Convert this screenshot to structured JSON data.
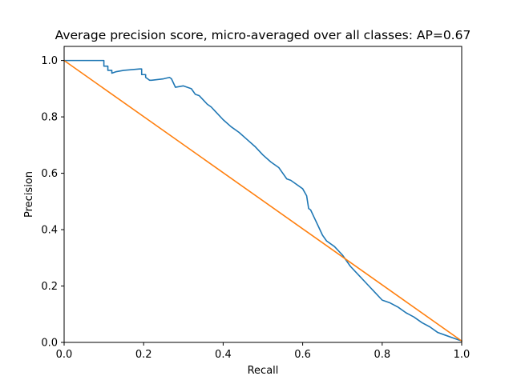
{
  "chart_data": {
    "type": "line",
    "title": "Average precision score, micro-averaged over all classes: AP=0.67",
    "xlabel": "Recall",
    "ylabel": "Precision",
    "xlim": [
      0.0,
      1.0
    ],
    "ylim": [
      0.0,
      1.05
    ],
    "xticks": [
      "0.0",
      "0.2",
      "0.4",
      "0.6",
      "0.8",
      "1.0"
    ],
    "yticks": [
      "0.0",
      "0.2",
      "0.4",
      "0.6",
      "0.8",
      "1.0"
    ],
    "grid": false,
    "colors": {
      "series0": "#1f77b4",
      "series1": "#ff7f0e"
    },
    "series": [
      {
        "x": [
          0.0,
          0.1,
          0.1,
          0.11,
          0.11,
          0.12,
          0.12,
          0.13,
          0.15,
          0.19,
          0.195,
          0.195,
          0.205,
          0.205,
          0.21,
          0.215,
          0.22,
          0.25,
          0.265,
          0.27,
          0.28,
          0.3,
          0.31,
          0.32,
          0.33,
          0.34,
          0.35,
          0.36,
          0.37,
          0.38,
          0.4,
          0.42,
          0.44,
          0.46,
          0.48,
          0.5,
          0.52,
          0.54,
          0.55,
          0.56,
          0.57,
          0.58,
          0.6,
          0.61,
          0.615,
          0.62,
          0.63,
          0.64,
          0.65,
          0.66,
          0.68,
          0.7,
          0.72,
          0.74,
          0.76,
          0.78,
          0.8,
          0.82,
          0.84,
          0.86,
          0.88,
          0.9,
          0.92,
          0.94,
          0.96,
          0.98,
          1.0
        ],
        "y": [
          1.0,
          1.0,
          0.98,
          0.98,
          0.965,
          0.965,
          0.955,
          0.96,
          0.965,
          0.97,
          0.97,
          0.95,
          0.95,
          0.94,
          0.935,
          0.93,
          0.93,
          0.935,
          0.94,
          0.935,
          0.905,
          0.91,
          0.905,
          0.9,
          0.88,
          0.875,
          0.86,
          0.845,
          0.835,
          0.82,
          0.79,
          0.765,
          0.745,
          0.72,
          0.695,
          0.665,
          0.64,
          0.62,
          0.6,
          0.58,
          0.575,
          0.565,
          0.545,
          0.52,
          0.475,
          0.47,
          0.44,
          0.41,
          0.38,
          0.36,
          0.34,
          0.31,
          0.27,
          0.24,
          0.21,
          0.18,
          0.15,
          0.14,
          0.125,
          0.105,
          0.09,
          0.07,
          0.055,
          0.035,
          0.025,
          0.015,
          0.005
        ]
      },
      {
        "x": [
          0.0,
          1.0
        ],
        "y": [
          1.0,
          0.005
        ]
      }
    ]
  }
}
